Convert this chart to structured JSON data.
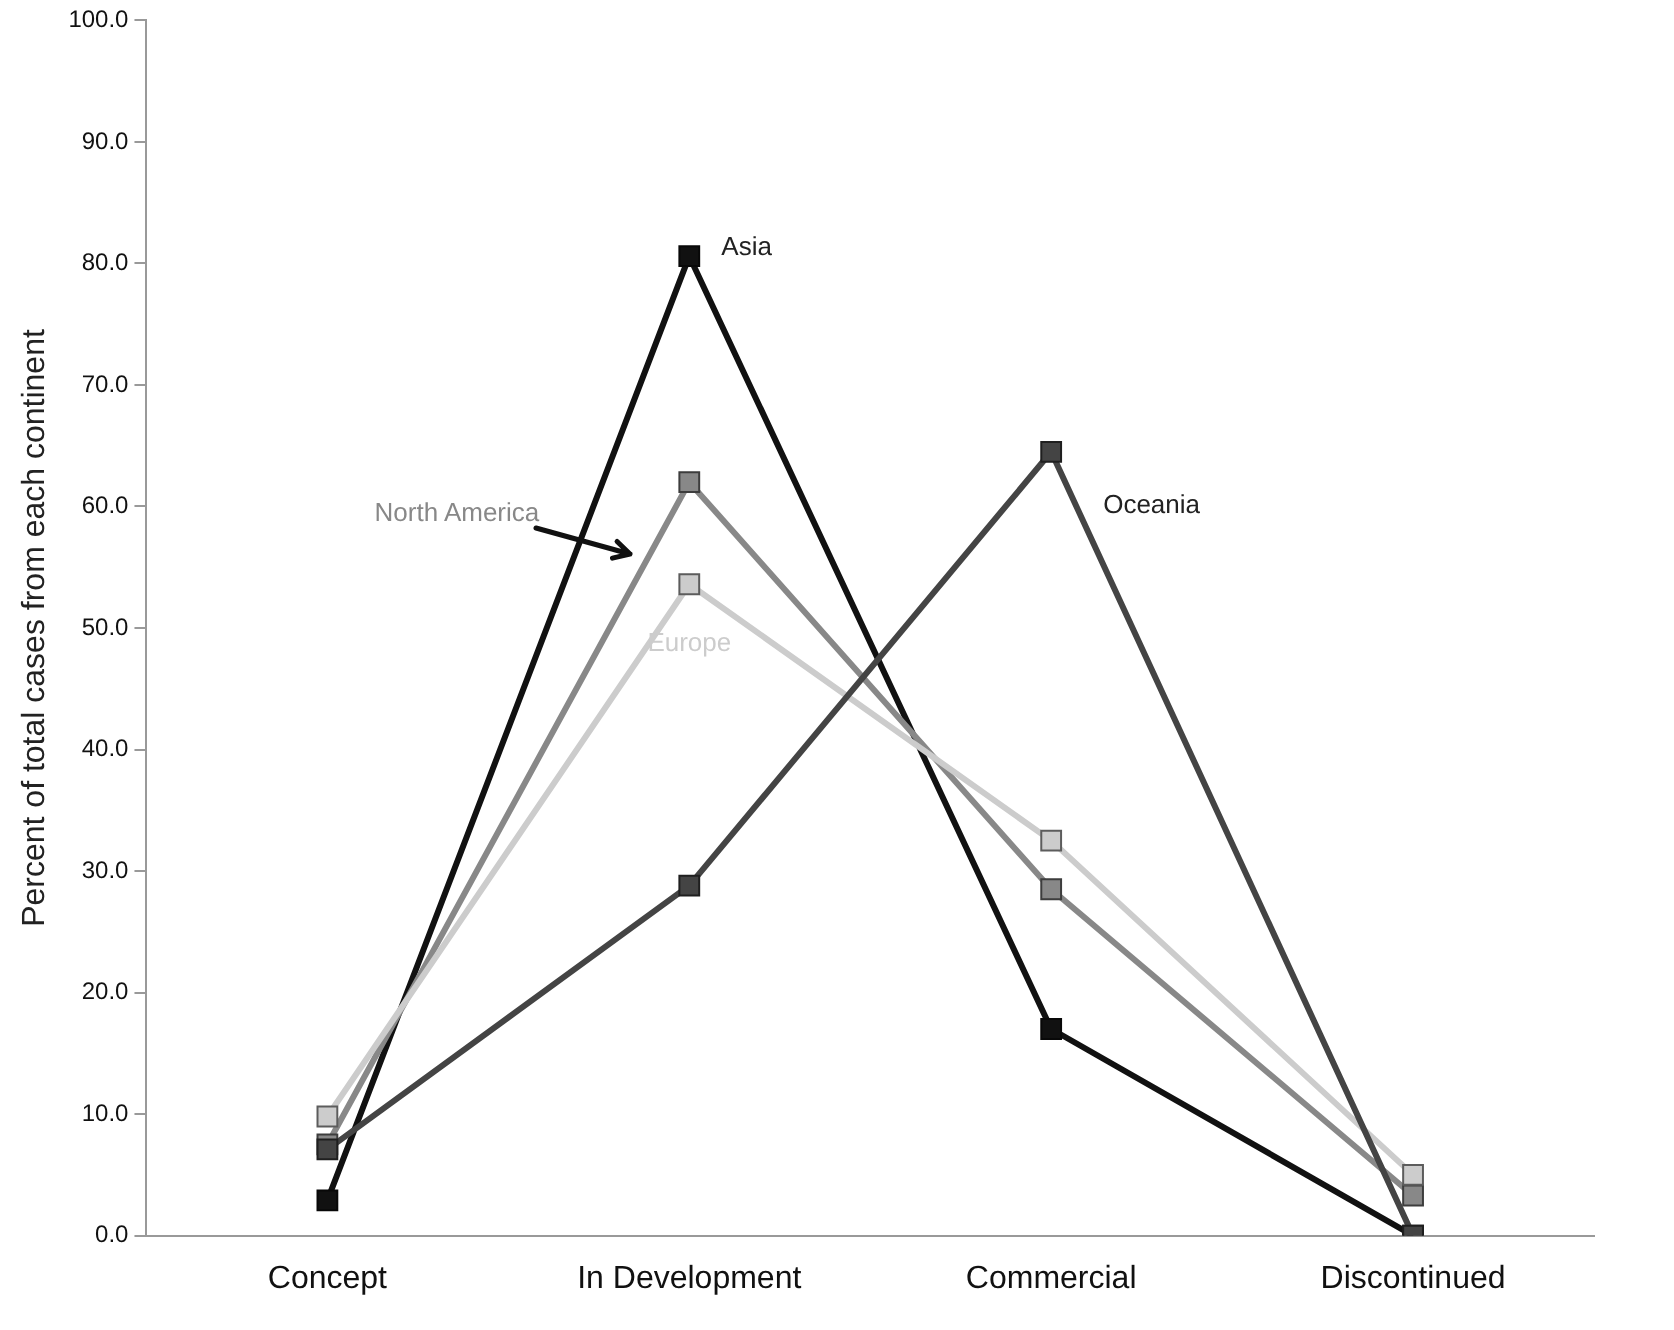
{
  "chart_data": {
    "type": "line",
    "ylabel": "Percent of total cases from each continent",
    "categories": [
      "Concept",
      "In Development",
      "Commercial",
      "Discontinued"
    ],
    "series": [
      {
        "name": "Asia",
        "color": "#111111",
        "values": [
          2.9,
          80.6,
          17.0,
          0
        ]
      },
      {
        "name": "North America",
        "color": "#888888",
        "values": [
          7.5,
          62.0,
          28.5,
          3.3
        ]
      },
      {
        "name": "Europe",
        "color": "#cccccc",
        "values": [
          9.8,
          53.6,
          32.5,
          5.0
        ]
      },
      {
        "name": "Oceania",
        "color": "#444444",
        "values": [
          7.1,
          28.8,
          64.5,
          0
        ]
      }
    ],
    "ylim": [
      0,
      100
    ],
    "yticks": [
      {
        "value": 0,
        "label": "0.0"
      },
      {
        "value": 10,
        "label": "10.0"
      },
      {
        "value": 20,
        "label": "20.0"
      },
      {
        "value": 30,
        "label": "30.0"
      },
      {
        "value": 40,
        "label": "40.0"
      },
      {
        "value": 50,
        "label": "50.0"
      },
      {
        "value": 60,
        "label": "60.0"
      },
      {
        "value": 70,
        "label": "70.0"
      },
      {
        "value": 80,
        "label": "80.0"
      },
      {
        "value": 90,
        "label": "90.0"
      },
      {
        "value": 100,
        "label": "100.0"
      }
    ],
    "grid": false,
    "legend": false,
    "marker": "square",
    "line_style": "solid"
  }
}
